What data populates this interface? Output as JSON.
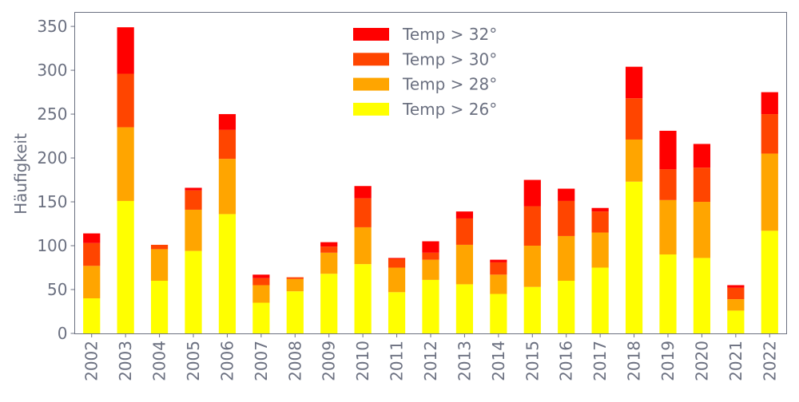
{
  "chart_data": {
    "type": "bar",
    "stacked": true,
    "title": "",
    "xlabel": "",
    "ylabel": "Häufigkeit",
    "ylim": [
      0,
      366
    ],
    "yticks": [
      0,
      50,
      100,
      150,
      200,
      250,
      300,
      350
    ],
    "grid": false,
    "legend_position": "top-center",
    "categories": [
      "2002",
      "2003",
      "2004",
      "2005",
      "2006",
      "2007",
      "2008",
      "2009",
      "2010",
      "2011",
      "2012",
      "2013",
      "2014",
      "2015",
      "2016",
      "2017",
      "2018",
      "2019",
      "2020",
      "2021",
      "2022"
    ],
    "series": [
      {
        "name": "Temp > 26°",
        "color": "#ffff00",
        "values": [
          40,
          151,
          60,
          94,
          136,
          35,
          48,
          68,
          79,
          47,
          61,
          56,
          45,
          53,
          60,
          75,
          173,
          90,
          86,
          26,
          117
        ]
      },
      {
        "name": "Temp > 28°",
        "color": "#ffa500",
        "values": [
          37,
          84,
          36,
          47,
          63,
          20,
          14,
          24,
          42,
          28,
          23,
          45,
          22,
          47,
          51,
          40,
          48,
          62,
          64,
          13,
          88
        ]
      },
      {
        "name": "Temp > 30°",
        "color": "#ff4500",
        "values": [
          26,
          61,
          5,
          22,
          33,
          8,
          2,
          7,
          33,
          10,
          8,
          30,
          14,
          45,
          40,
          24,
          47,
          35,
          39,
          13,
          45
        ]
      },
      {
        "name": "Temp > 32°",
        "color": "#ff0000",
        "values": [
          11,
          53,
          0,
          3,
          18,
          4,
          0,
          5,
          14,
          1,
          13,
          8,
          3,
          30,
          14,
          4,
          36,
          44,
          27,
          3,
          25
        ]
      }
    ],
    "legend_order": [
      3,
      2,
      1,
      0
    ]
  }
}
